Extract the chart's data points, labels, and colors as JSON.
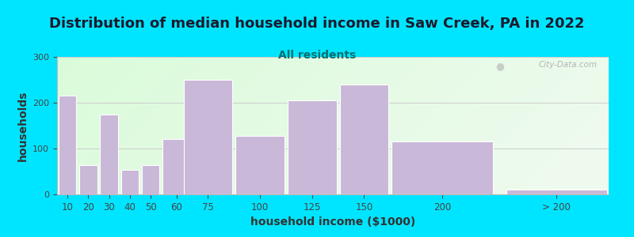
{
  "title": "Distribution of median household income in Saw Creek, PA in 2022",
  "subtitle": "All residents",
  "xlabel": "household income ($1000)",
  "ylabel": "households",
  "bar_labels": [
    "10",
    "20",
    "30",
    "40",
    "50",
    "60",
    "75",
    "100",
    "125",
    "150",
    "200",
    "> 200"
  ],
  "bar_values": [
    215,
    63,
    175,
    53,
    63,
    120,
    250,
    128,
    205,
    240,
    115,
    10
  ],
  "bar_color": "#c9b8d8",
  "bar_edgecolor": "#ffffff",
  "ylim": [
    0,
    300
  ],
  "yticks": [
    0,
    100,
    200,
    300
  ],
  "bg_outer": "#00e5ff",
  "title_fontsize": 13,
  "subtitle_fontsize": 10,
  "axis_label_fontsize": 10,
  "watermark_text": "City-Data.com",
  "bar_widths": [
    10,
    10,
    10,
    10,
    10,
    15,
    25,
    25,
    25,
    25,
    50,
    50
  ],
  "bar_lefts": [
    5,
    15,
    25,
    35,
    45,
    55,
    65,
    90,
    115,
    140,
    165,
    220
  ]
}
